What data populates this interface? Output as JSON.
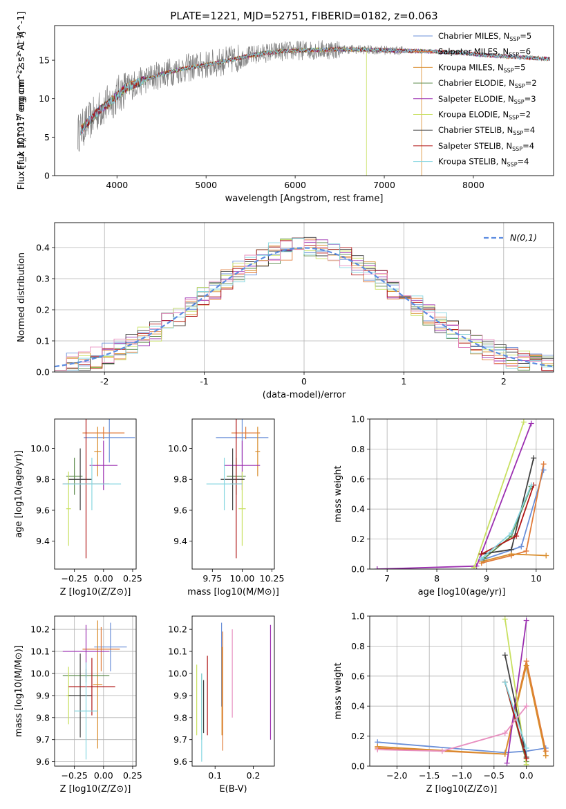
{
  "title": "PLATE=1221, MJD=52751, FIBERID=0182, z=0.063",
  "colors": {
    "Chabrier MILES": "#6a8fd8",
    "Salpeter MILES": "#e07b39",
    "Kroupa MILES": "#d98c2b",
    "Chabrier ELODIE": "#5a8a4a",
    "Salpeter ELODIE": "#9b2fb0",
    "Kroupa ELODIE": "#c8e060",
    "Chabrier STELIB": "#404040",
    "Salpeter STELIB": "#b01515",
    "Kroupa STELIB": "#86d6e0",
    "gaussian": "#5b8be0",
    "data": "#808080"
  },
  "chart_data": [
    {
      "id": "spectrum",
      "type": "line",
      "title": "PLATE=1221, MJD=52751, FIBERID=0182, z=0.063",
      "xlabel": "wavelength [Angstrom, rest frame]",
      "ylabel": "Flux [f_λ 10^-17 erg cm^-2 s^-1 A^-1]",
      "xlim": [
        3300,
        8900
      ],
      "ylim": [
        0,
        19.5
      ],
      "xticks": [
        4000,
        5000,
        6000,
        7000,
        8000
      ],
      "yticks": [
        0,
        5,
        10,
        15
      ],
      "grid": false,
      "legend_position": "top-right",
      "series": [
        {
          "name": "Chabrier MILES, N_SSP=5",
          "label_main": "Chabrier MILES, N",
          "label_sub": "SSP",
          "label_tail": "=5"
        },
        {
          "name": "Salpeter MILES, N_SSP=6",
          "label_main": "Salpeter MILES, N",
          "label_sub": "SSP",
          "label_tail": "=6"
        },
        {
          "name": "Kroupa MILES, N_SSP=5",
          "label_main": "Kroupa MILES, N",
          "label_sub": "SSP",
          "label_tail": "=5"
        },
        {
          "name": "Chabrier ELODIE, N_SSP=2",
          "label_main": "Chabrier ELODIE, N",
          "label_sub": "SSP",
          "label_tail": "=2"
        },
        {
          "name": "Salpeter ELODIE, N_SSP=3",
          "label_main": "Salpeter ELODIE, N",
          "label_sub": "SSP",
          "label_tail": "=3"
        },
        {
          "name": "Kroupa ELODIE, N_SSP=2",
          "label_main": "Kroupa ELODIE, N",
          "label_sub": "SSP",
          "label_tail": "=2"
        },
        {
          "name": "Chabrier STELIB, N_SSP=4",
          "label_main": "Chabrier STELIB, N",
          "label_sub": "SSP",
          "label_tail": "=4"
        },
        {
          "name": "Salpeter STELIB, N_SSP=4",
          "label_main": "Salpeter STELIB, N",
          "label_sub": "SSP",
          "label_tail": "=4"
        },
        {
          "name": "Kroupa STELIB, N_SSP=4",
          "label_main": "Kroupa STELIB, N",
          "label_sub": "SSP",
          "label_tail": "=4"
        }
      ],
      "continuum_knots": [
        [
          3560,
          5.5
        ],
        [
          3700,
          7.2
        ],
        [
          3800,
          8.5
        ],
        [
          3900,
          9.3
        ],
        [
          4000,
          10.4
        ],
        [
          4100,
          11.4
        ],
        [
          4300,
          12.4
        ],
        [
          4500,
          13.2
        ],
        [
          4700,
          13.8
        ],
        [
          4900,
          14.2
        ],
        [
          5100,
          14.6
        ],
        [
          5300,
          15.1
        ],
        [
          5500,
          15.6
        ],
        [
          5700,
          16.0
        ],
        [
          5900,
          16.2
        ],
        [
          6100,
          16.3
        ],
        [
          6400,
          16.4
        ],
        [
          6700,
          16.4
        ],
        [
          7000,
          16.3
        ],
        [
          7300,
          16.2
        ],
        [
          7600,
          16.1
        ],
        [
          7900,
          15.9
        ],
        [
          8200,
          15.6
        ],
        [
          8500,
          15.4
        ],
        [
          8800,
          15.2
        ]
      ]
    },
    {
      "id": "residuals",
      "type": "histogram",
      "xlabel": "(data-model)/error",
      "ylabel": "Normed distribution",
      "xlim": [
        -2.5,
        2.5
      ],
      "ylim": [
        0,
        0.48
      ],
      "xticks": [
        -2,
        -1,
        0,
        1,
        2
      ],
      "yticks": [
        0.0,
        0.1,
        0.2,
        0.3,
        0.4
      ],
      "grid": true,
      "legend_position": "top-right",
      "legend": "N(0,1)",
      "bins": 42
    },
    {
      "id": "age-vs-Z",
      "type": "scatter",
      "xlabel": "Z [log10(Z/Z⊙)]",
      "ylabel": "age [log10(age/yr)]",
      "xlim": [
        -0.42,
        0.28
      ],
      "ylim": [
        9.22,
        10.19
      ],
      "xticks": [
        -0.25,
        0.0,
        0.25
      ],
      "xtick_labels": [
        "−0.25",
        "0.00",
        "0.25"
      ],
      "yticks": [
        9.4,
        9.6,
        9.8,
        10.0
      ],
      "grid": false,
      "points": [
        {
          "series": "Chabrier MILES",
          "x": 0.05,
          "xerr": 0.22,
          "y": 10.07,
          "yerr": 0.16
        },
        {
          "series": "Salpeter MILES",
          "x": 0.0,
          "xerr": 0.18,
          "y": 10.1,
          "yerr": 0.04
        },
        {
          "series": "Kroupa MILES",
          "x": -0.05,
          "xerr": 0.03,
          "y": 9.98,
          "yerr": 0.16
        },
        {
          "series": "Chabrier ELODIE",
          "x": -0.25,
          "xerr": 0.07,
          "y": 9.82,
          "yerr": 0.12
        },
        {
          "series": "Salpeter ELODIE",
          "x": 0.0,
          "xerr": 0.12,
          "y": 9.89,
          "yerr": 0.16
        },
        {
          "series": "Kroupa ELODIE",
          "x": -0.3,
          "xerr": 0.02,
          "y": 9.61,
          "yerr": 0.24
        },
        {
          "series": "Chabrier STELIB",
          "x": -0.2,
          "xerr": 0.1,
          "y": 9.8,
          "yerr": 0.2
        },
        {
          "series": "Salpeter STELIB",
          "x": -0.15,
          "xerr": 0.2,
          "y": 9.77,
          "yerr": 0.48
        },
        {
          "series": "Kroupa STELIB",
          "x": -0.1,
          "xerr": 0.25,
          "y": 9.77,
          "yerr": 0.17
        }
      ]
    },
    {
      "id": "age-vs-mass",
      "type": "scatter",
      "xlabel": "mass [log10(M/M⊙)]",
      "ylabel": "",
      "xlim": [
        9.58,
        10.27
      ],
      "ylim": [
        9.22,
        10.19
      ],
      "xticks": [
        9.75,
        10.0,
        10.25
      ],
      "xtick_labels": [
        "9.75",
        "10.00",
        "10.25"
      ],
      "yticks": [
        9.4,
        9.6,
        9.8,
        10.0
      ],
      "grid": false,
      "points": [
        {
          "series": "Chabrier MILES",
          "x": 10.0,
          "xerr": 0.22,
          "y": 10.07,
          "yerr": 0.16
        },
        {
          "series": "Salpeter MILES",
          "x": 10.03,
          "xerr": 0.12,
          "y": 10.1,
          "yerr": 0.04
        },
        {
          "series": "Kroupa MILES",
          "x": 10.13,
          "xerr": 0.02,
          "y": 9.98,
          "yerr": 0.16
        },
        {
          "series": "Chabrier ELODIE",
          "x": 9.95,
          "xerr": 0.08,
          "y": 9.82,
          "yerr": 0.12
        },
        {
          "series": "Salpeter ELODIE",
          "x": 10.0,
          "xerr": 0.15,
          "y": 9.89,
          "yerr": 0.16
        },
        {
          "series": "Kroupa ELODIE",
          "x": 10.0,
          "xerr": 0.03,
          "y": 9.61,
          "yerr": 0.24
        },
        {
          "series": "Chabrier STELIB",
          "x": 9.92,
          "xerr": 0.1,
          "y": 9.8,
          "yerr": 0.2
        },
        {
          "series": "Salpeter STELIB",
          "x": 9.95,
          "xerr": 0.05,
          "y": 9.77,
          "yerr": 0.48
        },
        {
          "series": "Kroupa STELIB",
          "x": 9.85,
          "xerr": 0.15,
          "y": 9.77,
          "yerr": 0.17
        }
      ]
    },
    {
      "id": "massweight-vs-age",
      "type": "line",
      "xlabel": "age [log10(age/yr)]",
      "ylabel": "mass weight",
      "xlim": [
        6.65,
        10.35
      ],
      "ylim": [
        0,
        1
      ],
      "xticks": [
        7,
        8,
        9,
        10
      ],
      "yticks": [
        0.0,
        0.2,
        0.4,
        0.6,
        0.8,
        1.0
      ],
      "grid": true,
      "series": [
        {
          "series": "Chabrier MILES",
          "x": [
            8.9,
            9.7,
            10.15
          ],
          "y": [
            0.06,
            0.15,
            0.66
          ]
        },
        {
          "series": "Salpeter MILES",
          "x": [
            8.9,
            9.5,
            9.8,
            10.15
          ],
          "y": [
            0.04,
            0.09,
            0.12,
            0.7
          ]
        },
        {
          "series": "Kroupa MILES",
          "x": [
            8.9,
            9.5,
            10.2
          ],
          "y": [
            0.05,
            0.1,
            0.09
          ]
        },
        {
          "series": "Chabrier ELODIE",
          "x": [
            8.95,
            9.5,
            9.9
          ],
          "y": [
            0.07,
            0.22,
            0.55
          ]
        },
        {
          "series": "Salpeter ELODIE",
          "x": [
            6.8,
            8.8,
            9.9
          ],
          "y": [
            0.0,
            0.02,
            0.97
          ]
        },
        {
          "series": "Kroupa ELODIE",
          "x": [
            8.75,
            9.75
          ],
          "y": [
            0.01,
            0.98
          ]
        },
        {
          "series": "Chabrier STELIB",
          "x": [
            8.9,
            9.5,
            9.95
          ],
          "y": [
            0.1,
            0.13,
            0.74
          ]
        },
        {
          "series": "Salpeter STELIB",
          "x": [
            8.9,
            9.6,
            9.95
          ],
          "y": [
            0.1,
            0.22,
            0.56
          ]
        },
        {
          "series": "Kroupa STELIB",
          "x": [
            8.9,
            9.5,
            9.9
          ],
          "y": [
            0.07,
            0.24,
            0.56
          ]
        }
      ]
    },
    {
      "id": "mass-vs-Z",
      "type": "scatter",
      "xlabel": "Z [log10(Z/Z⊙)]",
      "ylabel": "mass [log10(M/M⊙)]",
      "xlim": [
        -0.42,
        0.28
      ],
      "ylim": [
        9.58,
        10.26
      ],
      "xticks": [
        -0.25,
        0.0,
        0.25
      ],
      "xtick_labels": [
        "−0.25",
        "0.00",
        "0.25"
      ],
      "yticks": [
        9.6,
        9.7,
        9.8,
        9.9,
        10.0,
        10.1,
        10.2
      ],
      "grid": true,
      "points": [
        {
          "series": "Chabrier MILES",
          "x": 0.06,
          "xerr": 0.14,
          "y": 10.12,
          "yerr": 0.11
        },
        {
          "series": "Salpeter MILES",
          "x": -0.02,
          "xerr": 0.16,
          "y": 10.11,
          "yerr": 0.1
        },
        {
          "series": "Kroupa MILES",
          "x": -0.05,
          "xerr": 0.04,
          "y": 9.95,
          "yerr": 0.29
        },
        {
          "series": "Chabrier ELODIE",
          "x": -0.15,
          "xerr": 0.2,
          "y": 9.99,
          "yerr": 0.03
        },
        {
          "series": "Salpeter ELODIE",
          "x": -0.15,
          "xerr": 0.2,
          "y": 10.1,
          "yerr": 0.12
        },
        {
          "series": "Kroupa ELODIE",
          "x": -0.3,
          "xerr": 0.02,
          "y": 9.9,
          "yerr": 0.13
        },
        {
          "series": "Chabrier STELIB",
          "x": -0.2,
          "xerr": 0.1,
          "y": 9.9,
          "yerr": 0.19
        },
        {
          "series": "Salpeter STELIB",
          "x": -0.1,
          "xerr": 0.2,
          "y": 9.94,
          "yerr": 0.13
        },
        {
          "series": "Kroupa STELIB",
          "x": -0.15,
          "xerr": 0.1,
          "y": 9.83,
          "yerr": 0.22
        }
      ]
    },
    {
      "id": "mass-vs-EBV",
      "type": "scatter",
      "xlabel": "E(B-V)",
      "ylabel": "",
      "xlim": [
        0.04,
        0.255
      ],
      "ylim": [
        9.58,
        10.26
      ],
      "xticks": [
        0.1,
        0.2
      ],
      "xtick_labels": [
        "0.1",
        "0.2"
      ],
      "yticks": [
        9.6,
        9.7,
        9.8,
        9.9,
        10.0,
        10.1,
        10.2
      ],
      "grid": false,
      "points": [
        {
          "series": "Chabrier MILES",
          "x": 0.117,
          "y": 10.04,
          "yerr": 0.19
        },
        {
          "series": "Salpeter MILES",
          "x": 0.12,
          "y": 9.92,
          "yerr": 0.27
        },
        {
          "series": "Kroupa MILES",
          "x": 0.118,
          "y": 9.92,
          "yerr": 0.2
        },
        {
          "series": "Chabrier ELODIE",
          "x": 0.065,
          "y": 9.85,
          "yerr": 0.15
        },
        {
          "series": "Salpeter ELODIE",
          "x": 0.245,
          "y": 9.96,
          "yerr": 0.26
        },
        {
          "series": "Kroupa ELODIE",
          "x": 0.052,
          "y": 9.88,
          "yerr": 0.16
        },
        {
          "series": "Chabrier STELIB",
          "x": 0.07,
          "y": 9.85,
          "yerr": 0.12
        },
        {
          "series": "Salpeter STELIB",
          "x": 0.08,
          "y": 9.9,
          "yerr": 0.18
        },
        {
          "series": "Kroupa STELIB",
          "x": 0.065,
          "y": 9.8,
          "yerr": 0.2
        }
      ],
      "extra_points": [
        {
          "color": "#e88fc0",
          "x": 0.145,
          "y": 10.0,
          "yerr": 0.2
        }
      ]
    },
    {
      "id": "massweight-vs-Z",
      "type": "line",
      "xlabel": "Z [log10(Z/Z⊙)]",
      "ylabel": "mass weight",
      "xlim": [
        -2.42,
        0.42
      ],
      "ylim": [
        0,
        1
      ],
      "xticks": [
        -2.0,
        -1.5,
        -1.0,
        -0.5,
        0.0
      ],
      "xtick_labels": [
        "−2.0",
        "−1.5",
        "−1.0",
        "−0.5",
        "0.0"
      ],
      "yticks": [
        0.0,
        0.2,
        0.4,
        0.6,
        0.8,
        1.0
      ],
      "grid": true,
      "series": [
        {
          "series": "Chabrier MILES",
          "x": [
            -2.3,
            -0.33,
            0.0,
            0.3
          ],
          "y": [
            0.16,
            0.09,
            0.1,
            0.12
          ]
        },
        {
          "series": "Salpeter MILES",
          "x": [
            -2.3,
            -0.33,
            0.0,
            0.3
          ],
          "y": [
            0.12,
            0.08,
            0.7,
            0.1
          ]
        },
        {
          "series": "Kroupa MILES",
          "x": [
            -2.3,
            -0.33,
            0.0,
            0.3
          ],
          "y": [
            0.13,
            0.08,
            0.67,
            0.07
          ]
        },
        {
          "series": "Chabrier ELODIE",
          "x": [
            -0.33,
            0.0
          ],
          "y": [
            0.56,
            0.03
          ]
        },
        {
          "series": "Salpeter ELODIE",
          "x": [
            -0.3,
            0.0
          ],
          "y": [
            0.02,
            0.97
          ]
        },
        {
          "series": "Kroupa ELODIE",
          "x": [
            -0.33,
            0.0
          ],
          "y": [
            0.98,
            0.01
          ]
        },
        {
          "series": "Chabrier STELIB",
          "x": [
            -0.33,
            0.0
          ],
          "y": [
            0.74,
            0.06
          ]
        },
        {
          "series": "Salpeter STELIB",
          "x": [
            -0.33,
            0.0
          ],
          "y": [
            0.56,
            0.05
          ]
        },
        {
          "series": "Kroupa STELIB",
          "x": [
            -0.33,
            0.0
          ],
          "y": [
            0.56,
            0.12
          ]
        }
      ],
      "extra_series": [
        {
          "color": "#e88fc0",
          "x": [
            -2.3,
            -1.3,
            -0.33,
            0.0
          ],
          "y": [
            0.11,
            0.1,
            0.22,
            0.4
          ]
        }
      ]
    }
  ]
}
